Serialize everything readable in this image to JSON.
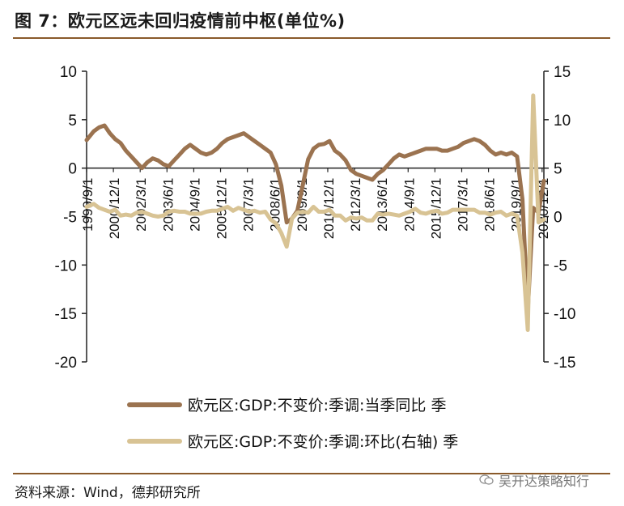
{
  "header": {
    "title": "图 7：欧元区远未回归疫情前中枢(单位%)"
  },
  "footer": {
    "source": "资料来源：Wind，德邦研究所",
    "watermark": "吴开达策略知行"
  },
  "colors": {
    "rule": "#8a5a2b",
    "yoy": "#9b7350",
    "qoq": "#d8c394",
    "axis": "#222222"
  },
  "chart_data": {
    "type": "line",
    "title": "",
    "left_axis": {
      "range": [
        -20,
        10
      ],
      "ticks": [
        "10",
        "5",
        "0",
        "-5",
        "-10",
        "-15",
        "-20"
      ],
      "tick_values": [
        10,
        5,
        0,
        -5,
        -10,
        -15,
        -20
      ]
    },
    "right_axis": {
      "range": [
        -15,
        15
      ],
      "ticks": [
        "15",
        "10",
        "5",
        "0",
        "-5",
        "-10",
        "-15"
      ],
      "tick_values": [
        15,
        10,
        5,
        0,
        -5,
        -10,
        -15
      ]
    },
    "x_range": [
      1999.667,
      2021.0
    ],
    "x_ticks": [
      {
        "label": "1999/9/1",
        "x": 1999.667
      },
      {
        "label": "2000/12/1",
        "x": 2000.917
      },
      {
        "label": "2002/3/1",
        "x": 2002.167
      },
      {
        "label": "2003/6/1",
        "x": 2003.417
      },
      {
        "label": "2004/9/1",
        "x": 2004.667
      },
      {
        "label": "2005/12/1",
        "x": 2005.917
      },
      {
        "label": "2007/3/1",
        "x": 2007.167
      },
      {
        "label": "2008/6/1",
        "x": 2008.417
      },
      {
        "label": "2009/9/1",
        "x": 2009.667
      },
      {
        "label": "2010/12/1",
        "x": 2010.917
      },
      {
        "label": "2012/3/1",
        "x": 2012.167
      },
      {
        "label": "2013/6/1",
        "x": 2013.417
      },
      {
        "label": "2014/9/1",
        "x": 2014.667
      },
      {
        "label": "2015/12/1",
        "x": 2015.917
      },
      {
        "label": "2017/3/1",
        "x": 2017.167
      },
      {
        "label": "2018/6/1",
        "x": 2018.417
      },
      {
        "label": "2019/9/1",
        "x": 2019.667
      },
      {
        "label": "2020/12/1",
        "x": 2020.917
      }
    ],
    "series": [
      {
        "name": "欧元区:GDP:不变价:季调:当季同比 季",
        "axis": "left",
        "points": [
          [
            1999.667,
            2.9
          ],
          [
            2000.0,
            3.8
          ],
          [
            2000.25,
            4.2
          ],
          [
            2000.5,
            4.4
          ],
          [
            2000.75,
            3.6
          ],
          [
            2001.0,
            3.0
          ],
          [
            2001.25,
            2.6
          ],
          [
            2001.5,
            1.8
          ],
          [
            2001.75,
            1.2
          ],
          [
            2002.0,
            0.6
          ],
          [
            2002.25,
            0.0
          ],
          [
            2002.5,
            0.6
          ],
          [
            2002.75,
            1.0
          ],
          [
            2003.0,
            0.8
          ],
          [
            2003.25,
            0.4
          ],
          [
            2003.5,
            0.2
          ],
          [
            2003.75,
            0.8
          ],
          [
            2004.0,
            1.4
          ],
          [
            2004.25,
            2.0
          ],
          [
            2004.5,
            2.4
          ],
          [
            2004.75,
            2.0
          ],
          [
            2005.0,
            1.6
          ],
          [
            2005.25,
            1.4
          ],
          [
            2005.5,
            1.6
          ],
          [
            2005.75,
            2.0
          ],
          [
            2006.0,
            2.6
          ],
          [
            2006.25,
            3.0
          ],
          [
            2006.5,
            3.2
          ],
          [
            2006.75,
            3.4
          ],
          [
            2007.0,
            3.6
          ],
          [
            2007.25,
            3.2
          ],
          [
            2007.5,
            2.8
          ],
          [
            2007.75,
            2.4
          ],
          [
            2008.0,
            2.0
          ],
          [
            2008.25,
            1.6
          ],
          [
            2008.5,
            0.4
          ],
          [
            2008.75,
            -1.8
          ],
          [
            2009.0,
            -5.6
          ],
          [
            2009.25,
            -5.2
          ],
          [
            2009.5,
            -4.4
          ],
          [
            2009.75,
            -1.8
          ],
          [
            2010.0,
            0.9
          ],
          [
            2010.25,
            2.0
          ],
          [
            2010.5,
            2.4
          ],
          [
            2010.75,
            2.5
          ],
          [
            2011.0,
            2.8
          ],
          [
            2011.25,
            1.8
          ],
          [
            2011.5,
            1.4
          ],
          [
            2011.75,
            0.8
          ],
          [
            2012.0,
            -0.2
          ],
          [
            2012.25,
            -0.6
          ],
          [
            2012.5,
            -0.8
          ],
          [
            2012.75,
            -1.0
          ],
          [
            2013.0,
            -1.2
          ],
          [
            2013.25,
            -0.6
          ],
          [
            2013.5,
            -0.2
          ],
          [
            2013.75,
            0.4
          ],
          [
            2014.0,
            1.0
          ],
          [
            2014.25,
            1.4
          ],
          [
            2014.5,
            1.2
          ],
          [
            2014.75,
            1.4
          ],
          [
            2015.0,
            1.6
          ],
          [
            2015.25,
            1.8
          ],
          [
            2015.5,
            2.0
          ],
          [
            2015.75,
            2.0
          ],
          [
            2016.0,
            2.0
          ],
          [
            2016.25,
            1.8
          ],
          [
            2016.5,
            1.8
          ],
          [
            2016.75,
            2.0
          ],
          [
            2017.0,
            2.2
          ],
          [
            2017.25,
            2.6
          ],
          [
            2017.5,
            2.8
          ],
          [
            2017.75,
            3.0
          ],
          [
            2018.0,
            2.8
          ],
          [
            2018.25,
            2.4
          ],
          [
            2018.5,
            1.8
          ],
          [
            2018.75,
            1.4
          ],
          [
            2019.0,
            1.6
          ],
          [
            2019.25,
            1.4
          ],
          [
            2019.5,
            1.6
          ],
          [
            2019.75,
            1.2
          ],
          [
            2020.0,
            -3.2
          ],
          [
            2020.25,
            -14.7
          ],
          [
            2020.5,
            -4.1
          ],
          [
            2020.75,
            -4.6
          ],
          [
            2021.0,
            -1.3
          ]
        ]
      },
      {
        "name": "欧元区:GDP:不变价:季调:环比(右轴) 季",
        "axis": "right",
        "points": [
          [
            1999.667,
            1.0
          ],
          [
            2000.0,
            1.3
          ],
          [
            2000.25,
            0.9
          ],
          [
            2000.5,
            0.7
          ],
          [
            2000.75,
            0.5
          ],
          [
            2001.0,
            0.7
          ],
          [
            2001.25,
            0.1
          ],
          [
            2001.5,
            0.2
          ],
          [
            2001.75,
            0.1
          ],
          [
            2002.0,
            0.4
          ],
          [
            2002.25,
            0.5
          ],
          [
            2002.5,
            0.3
          ],
          [
            2002.75,
            0.1
          ],
          [
            2003.0,
            0.0
          ],
          [
            2003.25,
            0.1
          ],
          [
            2003.5,
            0.5
          ],
          [
            2003.75,
            0.6
          ],
          [
            2004.0,
            0.5
          ],
          [
            2004.25,
            0.5
          ],
          [
            2004.5,
            0.3
          ],
          [
            2004.75,
            0.3
          ],
          [
            2005.0,
            0.3
          ],
          [
            2005.25,
            0.5
          ],
          [
            2005.5,
            0.6
          ],
          [
            2005.75,
            0.6
          ],
          [
            2006.0,
            0.8
          ],
          [
            2006.25,
            1.0
          ],
          [
            2006.5,
            0.6
          ],
          [
            2006.75,
            0.9
          ],
          [
            2007.0,
            0.7
          ],
          [
            2007.25,
            0.5
          ],
          [
            2007.5,
            0.6
          ],
          [
            2007.75,
            0.4
          ],
          [
            2008.0,
            0.5
          ],
          [
            2008.25,
            -0.3
          ],
          [
            2008.5,
            -0.7
          ],
          [
            2008.75,
            -1.7
          ],
          [
            2009.0,
            -3.1
          ],
          [
            2009.25,
            -0.2
          ],
          [
            2009.5,
            0.4
          ],
          [
            2009.75,
            0.5
          ],
          [
            2010.0,
            0.4
          ],
          [
            2010.25,
            1.0
          ],
          [
            2010.5,
            0.5
          ],
          [
            2010.75,
            0.5
          ],
          [
            2011.0,
            0.7
          ],
          [
            2011.25,
            0.1
          ],
          [
            2011.5,
            0.1
          ],
          [
            2011.75,
            -0.4
          ],
          [
            2012.0,
            -0.1
          ],
          [
            2012.25,
            -0.2
          ],
          [
            2012.5,
            -0.1
          ],
          [
            2012.75,
            -0.4
          ],
          [
            2013.0,
            -0.4
          ],
          [
            2013.25,
            0.3
          ],
          [
            2013.5,
            0.2
          ],
          [
            2013.75,
            0.3
          ],
          [
            2014.0,
            0.2
          ],
          [
            2014.25,
            0.1
          ],
          [
            2014.5,
            0.3
          ],
          [
            2014.75,
            0.5
          ],
          [
            2015.0,
            0.8
          ],
          [
            2015.25,
            0.4
          ],
          [
            2015.5,
            0.3
          ],
          [
            2015.75,
            0.5
          ],
          [
            2016.0,
            0.6
          ],
          [
            2016.25,
            0.3
          ],
          [
            2016.5,
            0.4
          ],
          [
            2016.75,
            0.7
          ],
          [
            2017.0,
            0.7
          ],
          [
            2017.25,
            0.7
          ],
          [
            2017.5,
            0.7
          ],
          [
            2017.75,
            0.7
          ],
          [
            2018.0,
            0.4
          ],
          [
            2018.25,
            0.4
          ],
          [
            2018.5,
            0.2
          ],
          [
            2018.75,
            0.4
          ],
          [
            2019.0,
            0.5
          ],
          [
            2019.25,
            0.1
          ],
          [
            2019.5,
            0.3
          ],
          [
            2019.75,
            0.1
          ],
          [
            2020.0,
            -3.7
          ],
          [
            2020.25,
            -11.7
          ],
          [
            2020.5,
            12.5
          ],
          [
            2020.75,
            -0.6
          ],
          [
            2021.0,
            -0.3
          ]
        ]
      }
    ],
    "legend": [
      {
        "label": "欧元区:GDP:不变价:季调:当季同比 季"
      },
      {
        "label": "欧元区:GDP:不变价:季调:环比(右轴) 季"
      }
    ]
  }
}
